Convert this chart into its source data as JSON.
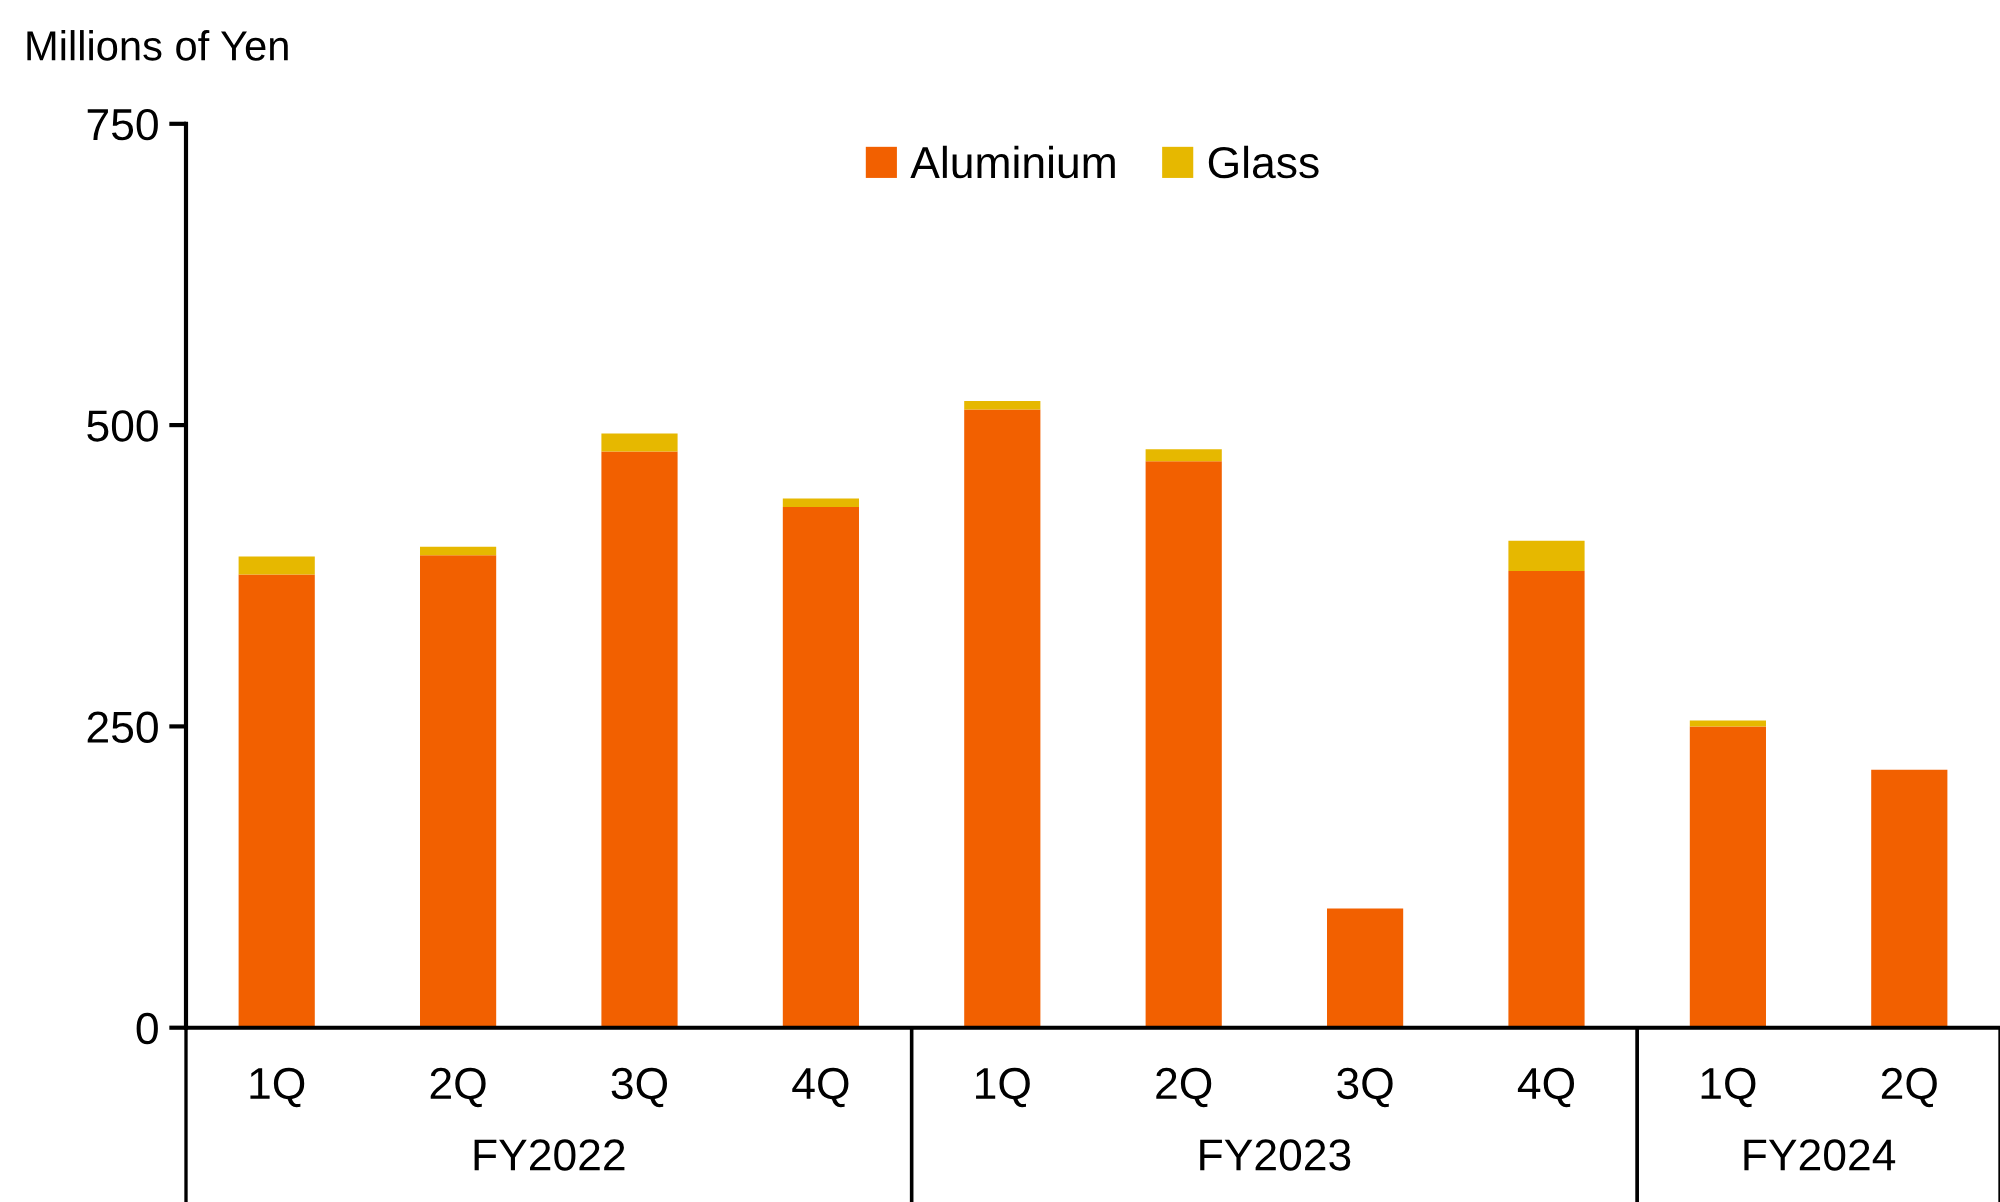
{
  "chart_data": {
    "type": "bar",
    "stacked": true,
    "ylabel": "Millions of Yen",
    "categories": [
      "1Q",
      "2Q",
      "3Q",
      "4Q",
      "1Q",
      "2Q",
      "3Q",
      "4Q",
      "1Q",
      "2Q"
    ],
    "series": [
      {
        "name": "Aluminium",
        "color": "#f26000",
        "values": [
          376,
          392,
          478,
          432,
          513,
          470,
          99,
          379,
          250,
          214
        ]
      },
      {
        "name": "Glass",
        "color": "#e6b800",
        "values": [
          15,
          7,
          15,
          7,
          7,
          10,
          0,
          25,
          5,
          0
        ]
      }
    ],
    "ylim": [
      0,
      750
    ],
    "yticks": [
      0,
      250,
      500,
      750
    ],
    "grid": false,
    "legend": "top",
    "annotations": [
      "FY2022",
      "FY2023",
      "FY2024"
    ]
  }
}
